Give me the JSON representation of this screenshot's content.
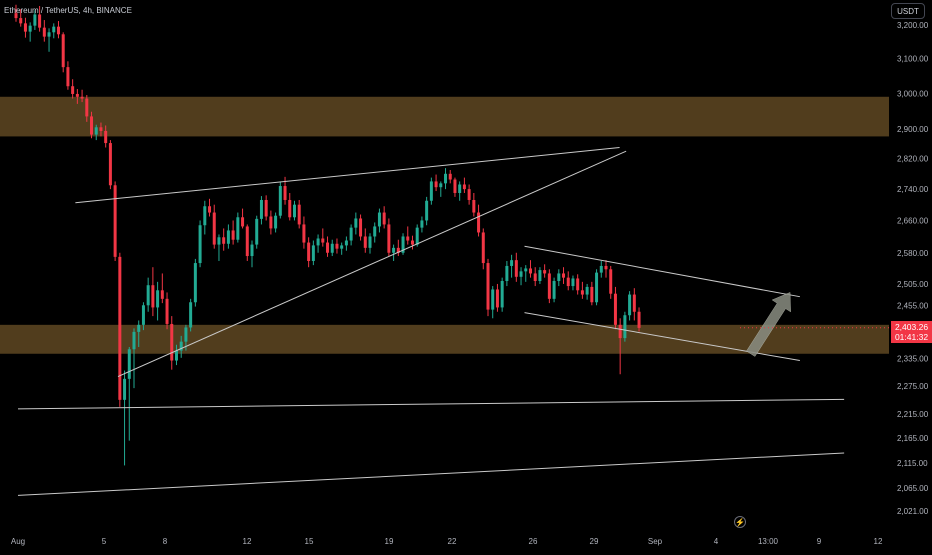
{
  "header": {
    "symbol": "Ethereum / TetherUS, 4h, BINANCE"
  },
  "currency_button": "USDT",
  "last_price": {
    "value": "2,403.26",
    "countdown": "01:41:32",
    "color": "#f23645"
  },
  "colors": {
    "up": "#26a69a",
    "up_bright": "#22ab94",
    "down": "#f23645",
    "zone": "#5a4420",
    "trendline": "#c9c9c9",
    "arrow": "#8a8d82"
  },
  "chart_data": {
    "type": "candlestick",
    "timeframe": "4h",
    "y_axis": {
      "ticks": [
        "3,200.00",
        "3,100.00",
        "3,000.00",
        "2,900.00",
        "2,820.00",
        "2,740.00",
        "2,660.00",
        "2,580.00",
        "2,505.00",
        "2,455.00",
        "2,335.00",
        "2,275.00",
        "2,215.00",
        "2,165.00",
        "2,115.00",
        "2,065.00",
        "2,021.00"
      ],
      "scale": "log"
    },
    "x_axis": {
      "ticks": [
        "Aug",
        "5",
        "8",
        "12",
        "15",
        "19",
        "22",
        "26",
        "29",
        "Sep",
        "4",
        "13:00",
        "9",
        "12"
      ]
    },
    "zones": [
      {
        "name": "resistance-zone",
        "from": 2880,
        "to": 2990
      },
      {
        "name": "support-zone",
        "from": 2345,
        "to": 2410
      }
    ],
    "trendlines": [
      {
        "name": "triangle-upper",
        "from": [
          "Aug 3 22:00",
          2705
        ],
        "to": [
          "Aug 31 14:00",
          2850
        ]
      },
      {
        "name": "triangle-lower",
        "from": [
          "Aug 6 02:00",
          2295
        ],
        "to": [
          "Aug 31 22:00",
          2840
        ]
      },
      {
        "name": "channel-upper",
        "from": [
          "Aug 26 18:00",
          2596
        ],
        "to": [
          "Sep 9 18:00",
          2475
        ]
      },
      {
        "name": "channel-lower",
        "from": [
          "Aug 26 18:00",
          2438
        ],
        "to": [
          "Sep 9 18:00",
          2330
        ]
      },
      {
        "name": "horizontal-support-1",
        "from": [
          "Aug 1 00:00",
          2226
        ],
        "to": [
          "Sep 12 00:00",
          2246
        ]
      },
      {
        "name": "horizontal-support-2",
        "from": [
          "Aug 1 00:00",
          2051
        ],
        "to": [
          "Sep 12 00:00",
          2135
        ]
      }
    ],
    "projection": {
      "from": [
        "Sep 7 06:00",
        2345
      ],
      "to": [
        "Sep 9 06:00",
        2485
      ],
      "direction": "up"
    },
    "candles": [
      [
        3236,
        3262,
        3210,
        3221
      ],
      [
        3221,
        3248,
        3195,
        3205
      ],
      [
        3205,
        3222,
        3162,
        3180
      ],
      [
        3180,
        3208,
        3150,
        3198
      ],
      [
        3198,
        3245,
        3185,
        3232
      ],
      [
        3232,
        3258,
        3180,
        3192
      ],
      [
        3192,
        3215,
        3150,
        3165
      ],
      [
        3165,
        3190,
        3120,
        3178
      ],
      [
        3178,
        3205,
        3160,
        3195
      ],
      [
        3195,
        3212,
        3160,
        3172
      ],
      [
        3172,
        3178,
        3060,
        3075
      ],
      [
        3075,
        3092,
        3010,
        3020
      ],
      [
        3020,
        3040,
        2985,
        2998
      ],
      [
        2998,
        3012,
        2970,
        2990
      ],
      [
        2990,
        3010,
        2975,
        2985
      ],
      [
        2985,
        2995,
        2920,
        2935
      ],
      [
        2935,
        2948,
        2875,
        2885
      ],
      [
        2885,
        2912,
        2870,
        2905
      ],
      [
        2905,
        2918,
        2880,
        2895
      ],
      [
        2895,
        2910,
        2850,
        2862
      ],
      [
        2862,
        2870,
        2740,
        2750
      ],
      [
        2750,
        2760,
        2560,
        2570
      ],
      [
        2570,
        2580,
        2230,
        2245
      ],
      [
        2245,
        2308,
        2110,
        2290
      ],
      [
        2290,
        2360,
        2160,
        2355
      ],
      [
        2355,
        2402,
        2270,
        2394
      ],
      [
        2394,
        2420,
        2360,
        2410
      ],
      [
        2410,
        2462,
        2398,
        2455
      ],
      [
        2455,
        2520,
        2440,
        2502
      ],
      [
        2502,
        2545,
        2430,
        2450
      ],
      [
        2450,
        2510,
        2420,
        2490
      ],
      [
        2490,
        2530,
        2460,
        2470
      ],
      [
        2470,
        2485,
        2400,
        2412
      ],
      [
        2412,
        2430,
        2310,
        2330
      ],
      [
        2330,
        2365,
        2320,
        2352
      ],
      [
        2352,
        2385,
        2336,
        2372
      ],
      [
        2372,
        2410,
        2352,
        2404
      ],
      [
        2404,
        2470,
        2395,
        2462
      ],
      [
        2462,
        2565,
        2452,
        2555
      ],
      [
        2555,
        2660,
        2545,
        2648
      ],
      [
        2648,
        2710,
        2625,
        2696
      ],
      [
        2696,
        2715,
        2670,
        2680
      ],
      [
        2680,
        2700,
        2590,
        2600
      ],
      [
        2600,
        2625,
        2560,
        2618
      ],
      [
        2618,
        2640,
        2585,
        2602
      ],
      [
        2602,
        2650,
        2590,
        2635
      ],
      [
        2635,
        2660,
        2600,
        2612
      ],
      [
        2612,
        2680,
        2605,
        2668
      ],
      [
        2668,
        2690,
        2640,
        2645
      ],
      [
        2645,
        2650,
        2560,
        2572
      ],
      [
        2572,
        2610,
        2545,
        2600
      ],
      [
        2600,
        2672,
        2590,
        2664
      ],
      [
        2664,
        2722,
        2650,
        2712
      ],
      [
        2712,
        2724,
        2660,
        2670
      ],
      [
        2670,
        2685,
        2625,
        2640
      ],
      [
        2640,
        2680,
        2630,
        2672
      ],
      [
        2672,
        2760,
        2665,
        2748
      ],
      [
        2748,
        2772,
        2700,
        2712
      ],
      [
        2712,
        2730,
        2660,
        2668
      ],
      [
        2668,
        2710,
        2660,
        2700
      ],
      [
        2700,
        2712,
        2640,
        2650
      ],
      [
        2650,
        2670,
        2590,
        2605
      ],
      [
        2605,
        2618,
        2545,
        2560
      ],
      [
        2560,
        2610,
        2550,
        2598
      ],
      [
        2598,
        2625,
        2580,
        2615
      ],
      [
        2615,
        2640,
        2595,
        2605
      ],
      [
        2605,
        2620,
        2570,
        2580
      ],
      [
        2580,
        2612,
        2572,
        2602
      ],
      [
        2602,
        2615,
        2578,
        2590
      ],
      [
        2590,
        2605,
        2575,
        2598
      ],
      [
        2598,
        2620,
        2585,
        2610
      ],
      [
        2610,
        2650,
        2598,
        2642
      ],
      [
        2642,
        2680,
        2625,
        2665
      ],
      [
        2665,
        2675,
        2610,
        2620
      ],
      [
        2620,
        2640,
        2580,
        2592
      ],
      [
        2592,
        2628,
        2578,
        2620
      ],
      [
        2620,
        2655,
        2605,
        2645
      ],
      [
        2645,
        2690,
        2630,
        2680
      ],
      [
        2680,
        2696,
        2640,
        2650
      ],
      [
        2650,
        2665,
        2572,
        2580
      ],
      [
        2580,
        2600,
        2560,
        2592
      ],
      [
        2592,
        2612,
        2572,
        2580
      ],
      [
        2580,
        2628,
        2575,
        2620
      ],
      [
        2620,
        2645,
        2600,
        2610
      ],
      [
        2610,
        2622,
        2588,
        2600
      ],
      [
        2600,
        2650,
        2595,
        2642
      ],
      [
        2642,
        2670,
        2630,
        2660
      ],
      [
        2660,
        2720,
        2648,
        2710
      ],
      [
        2710,
        2770,
        2700,
        2760
      ],
      [
        2760,
        2778,
        2735,
        2745
      ],
      [
        2745,
        2760,
        2720,
        2755
      ],
      [
        2755,
        2795,
        2740,
        2780
      ],
      [
        2780,
        2790,
        2755,
        2765
      ],
      [
        2765,
        2770,
        2720,
        2730
      ],
      [
        2730,
        2760,
        2710,
        2752
      ],
      [
        2752,
        2770,
        2730,
        2740
      ],
      [
        2740,
        2752,
        2700,
        2712
      ],
      [
        2712,
        2730,
        2670,
        2680
      ],
      [
        2680,
        2700,
        2620,
        2630
      ],
      [
        2630,
        2640,
        2540,
        2555
      ],
      [
        2555,
        2565,
        2430,
        2445
      ],
      [
        2445,
        2500,
        2425,
        2492
      ],
      [
        2492,
        2505,
        2440,
        2450
      ],
      [
        2450,
        2520,
        2440,
        2512
      ],
      [
        2512,
        2560,
        2500,
        2548
      ],
      [
        2548,
        2575,
        2520,
        2562
      ],
      [
        2562,
        2580,
        2510,
        2522
      ],
      [
        2522,
        2545,
        2502,
        2535
      ],
      [
        2535,
        2550,
        2510,
        2542
      ],
      [
        2542,
        2562,
        2520,
        2530
      ],
      [
        2530,
        2545,
        2500,
        2512
      ],
      [
        2512,
        2545,
        2505,
        2538
      ],
      [
        2538,
        2552,
        2520,
        2530
      ],
      [
        2530,
        2540,
        2460,
        2470
      ],
      [
        2470,
        2520,
        2462,
        2512
      ],
      [
        2512,
        2540,
        2500,
        2530
      ],
      [
        2530,
        2545,
        2505,
        2520
      ],
      [
        2520,
        2535,
        2490,
        2500
      ],
      [
        2500,
        2525,
        2490,
        2518
      ],
      [
        2518,
        2528,
        2480,
        2490
      ],
      [
        2490,
        2510,
        2470,
        2480
      ],
      [
        2480,
        2505,
        2468,
        2498
      ],
      [
        2498,
        2510,
        2455,
        2462
      ],
      [
        2462,
        2540,
        2455,
        2532
      ],
      [
        2532,
        2560,
        2520,
        2548
      ],
      [
        2548,
        2562,
        2520,
        2540
      ],
      [
        2540,
        2548,
        2470,
        2482
      ],
      [
        2482,
        2498,
        2400,
        2410
      ],
      [
        2410,
        2425,
        2300,
        2380
      ],
      [
        2380,
        2440,
        2372,
        2432
      ],
      [
        2432,
        2488,
        2420,
        2480
      ],
      [
        2480,
        2495,
        2420,
        2440
      ],
      [
        2440,
        2450,
        2395,
        2403
      ]
    ]
  }
}
